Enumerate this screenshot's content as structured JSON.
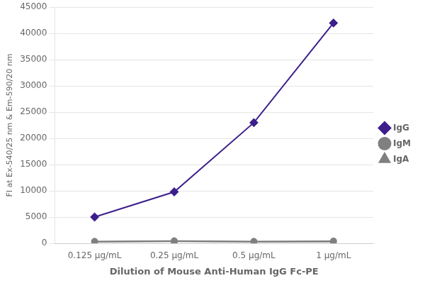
{
  "chart_data": {
    "type": "line",
    "categories": [
      "0.125 μg/mL",
      "0.25 μg/mL",
      "0.5 μg/mL",
      "1 μg/mL"
    ],
    "series": [
      {
        "name": "IgG",
        "color": "#3d1f8c",
        "marker": "diamond",
        "values": [
          5000,
          9800,
          23000,
          42000
        ]
      },
      {
        "name": "IgM",
        "color": "#808080",
        "marker": "circle",
        "values": [
          350,
          450,
          350,
          400
        ]
      },
      {
        "name": "IgA",
        "color": "#808080",
        "marker": "triangle",
        "values": [
          280,
          380,
          280,
          320
        ]
      }
    ],
    "xlabel": "Dilution of Mouse Anti-Human IgG Fc-PE",
    "ylabel": "FI at Ex-540/25 nm & Em-590/20 nm",
    "ylim": [
      0,
      45000
    ],
    "yticks": [
      0,
      5000,
      10000,
      15000,
      20000,
      25000,
      30000,
      35000,
      40000,
      45000
    ],
    "grid": true,
    "legend": "right"
  }
}
